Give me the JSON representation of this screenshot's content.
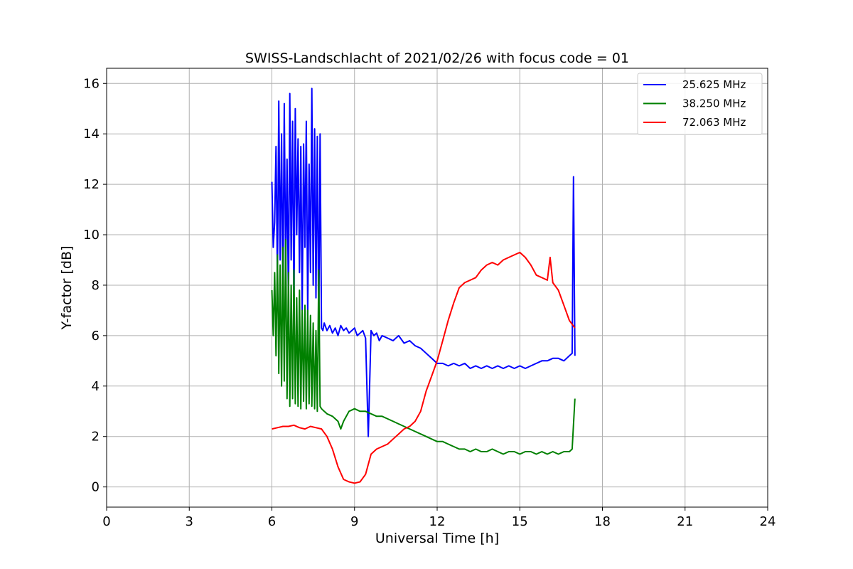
{
  "chart_data": {
    "type": "line",
    "title": "SWISS-Landschlacht of 2021/02/26 with focus code = 01",
    "xlabel": "Universal Time [h]",
    "ylabel": "Y-factor [dB]",
    "xlim": [
      0,
      24
    ],
    "ylim": [
      -0.8,
      16.6
    ],
    "xticks": [
      0,
      3,
      6,
      9,
      12,
      15,
      18,
      21,
      24
    ],
    "yticks": [
      0,
      2,
      4,
      6,
      8,
      10,
      12,
      14,
      16
    ],
    "grid": true,
    "legend_position": "top-right",
    "series": [
      {
        "name": "25.625 MHz",
        "color": "#0000ff",
        "points": [
          [
            6.0,
            12.1
          ],
          [
            6.05,
            9.5
          ],
          [
            6.1,
            10.5
          ],
          [
            6.15,
            13.5
          ],
          [
            6.2,
            8.2
          ],
          [
            6.25,
            15.3
          ],
          [
            6.3,
            9.0
          ],
          [
            6.35,
            14.0
          ],
          [
            6.4,
            7.5
          ],
          [
            6.45,
            15.2
          ],
          [
            6.5,
            8.5
          ],
          [
            6.55,
            13.0
          ],
          [
            6.6,
            7.2
          ],
          [
            6.65,
            15.6
          ],
          [
            6.7,
            9.0
          ],
          [
            6.75,
            14.5
          ],
          [
            6.8,
            7.0
          ],
          [
            6.85,
            15.0
          ],
          [
            6.9,
            10.0
          ],
          [
            6.95,
            13.8
          ],
          [
            7.0,
            8.5
          ],
          [
            7.05,
            13.5
          ],
          [
            7.1,
            7.0
          ],
          [
            7.15,
            13.6
          ],
          [
            7.2,
            9.5
          ],
          [
            7.25,
            14.5
          ],
          [
            7.3,
            6.8
          ],
          [
            7.35,
            12.8
          ],
          [
            7.4,
            8.5
          ],
          [
            7.45,
            15.8
          ],
          [
            7.5,
            8.0
          ],
          [
            7.55,
            14.2
          ],
          [
            7.6,
            7.5
          ],
          [
            7.65,
            13.9
          ],
          [
            7.7,
            6.0
          ],
          [
            7.75,
            14.0
          ],
          [
            7.8,
            6.3
          ],
          [
            7.85,
            6.2
          ],
          [
            7.9,
            6.5
          ],
          [
            8.0,
            6.2
          ],
          [
            8.1,
            6.4
          ],
          [
            8.2,
            6.1
          ],
          [
            8.3,
            6.3
          ],
          [
            8.4,
            6.0
          ],
          [
            8.5,
            6.4
          ],
          [
            8.6,
            6.2
          ],
          [
            8.7,
            6.3
          ],
          [
            8.8,
            6.1
          ],
          [
            8.9,
            6.2
          ],
          [
            9.0,
            6.3
          ],
          [
            9.1,
            6.0
          ],
          [
            9.2,
            6.1
          ],
          [
            9.3,
            6.2
          ],
          [
            9.4,
            5.9
          ],
          [
            9.5,
            2.0
          ],
          [
            9.6,
            6.2
          ],
          [
            9.7,
            6.0
          ],
          [
            9.8,
            6.1
          ],
          [
            9.9,
            5.8
          ],
          [
            10.0,
            6.0
          ],
          [
            10.2,
            5.9
          ],
          [
            10.4,
            5.8
          ],
          [
            10.6,
            6.0
          ],
          [
            10.8,
            5.7
          ],
          [
            11.0,
            5.8
          ],
          [
            11.2,
            5.6
          ],
          [
            11.4,
            5.5
          ],
          [
            11.6,
            5.3
          ],
          [
            11.8,
            5.1
          ],
          [
            12.0,
            4.9
          ],
          [
            12.2,
            4.9
          ],
          [
            12.4,
            4.8
          ],
          [
            12.6,
            4.9
          ],
          [
            12.8,
            4.8
          ],
          [
            13.0,
            4.9
          ],
          [
            13.2,
            4.7
          ],
          [
            13.4,
            4.8
          ],
          [
            13.6,
            4.7
          ],
          [
            13.8,
            4.8
          ],
          [
            14.0,
            4.7
          ],
          [
            14.2,
            4.8
          ],
          [
            14.4,
            4.7
          ],
          [
            14.6,
            4.8
          ],
          [
            14.8,
            4.7
          ],
          [
            15.0,
            4.8
          ],
          [
            15.2,
            4.7
          ],
          [
            15.4,
            4.8
          ],
          [
            15.6,
            4.9
          ],
          [
            15.8,
            5.0
          ],
          [
            16.0,
            5.0
          ],
          [
            16.2,
            5.1
          ],
          [
            16.4,
            5.1
          ],
          [
            16.6,
            5.0
          ],
          [
            16.8,
            5.2
          ],
          [
            16.9,
            5.3
          ],
          [
            16.95,
            12.3
          ],
          [
            17.0,
            5.2
          ]
        ]
      },
      {
        "name": "38.250 MHz",
        "color": "#008000",
        "points": [
          [
            6.0,
            7.8
          ],
          [
            6.05,
            6.0
          ],
          [
            6.1,
            8.5
          ],
          [
            6.15,
            5.2
          ],
          [
            6.2,
            9.2
          ],
          [
            6.25,
            4.5
          ],
          [
            6.3,
            8.8
          ],
          [
            6.35,
            4.0
          ],
          [
            6.4,
            9.5
          ],
          [
            6.45,
            4.2
          ],
          [
            6.5,
            9.8
          ],
          [
            6.55,
            3.5
          ],
          [
            6.6,
            8.5
          ],
          [
            6.65,
            3.2
          ],
          [
            6.7,
            8.0
          ],
          [
            6.75,
            3.5
          ],
          [
            6.8,
            8.6
          ],
          [
            6.85,
            3.3
          ],
          [
            6.9,
            7.5
          ],
          [
            6.95,
            3.2
          ],
          [
            7.0,
            7.8
          ],
          [
            7.05,
            3.1
          ],
          [
            7.1,
            7.0
          ],
          [
            7.15,
            3.4
          ],
          [
            7.2,
            7.2
          ],
          [
            7.25,
            3.1
          ],
          [
            7.3,
            7.0
          ],
          [
            7.35,
            3.3
          ],
          [
            7.4,
            6.8
          ],
          [
            7.45,
            3.2
          ],
          [
            7.5,
            6.5
          ],
          [
            7.55,
            3.1
          ],
          [
            7.6,
            6.2
          ],
          [
            7.65,
            3.0
          ],
          [
            7.7,
            8.6
          ],
          [
            7.75,
            3.2
          ],
          [
            7.8,
            3.1
          ],
          [
            7.9,
            3.0
          ],
          [
            8.0,
            2.9
          ],
          [
            8.2,
            2.8
          ],
          [
            8.4,
            2.6
          ],
          [
            8.5,
            2.3
          ],
          [
            8.6,
            2.6
          ],
          [
            8.8,
            3.0
          ],
          [
            9.0,
            3.1
          ],
          [
            9.2,
            3.0
          ],
          [
            9.4,
            3.0
          ],
          [
            9.6,
            2.9
          ],
          [
            9.8,
            2.8
          ],
          [
            10.0,
            2.8
          ],
          [
            10.2,
            2.7
          ],
          [
            10.4,
            2.6
          ],
          [
            10.6,
            2.5
          ],
          [
            10.8,
            2.4
          ],
          [
            11.0,
            2.3
          ],
          [
            11.2,
            2.2
          ],
          [
            11.4,
            2.1
          ],
          [
            11.6,
            2.0
          ],
          [
            11.8,
            1.9
          ],
          [
            12.0,
            1.8
          ],
          [
            12.2,
            1.8
          ],
          [
            12.4,
            1.7
          ],
          [
            12.6,
            1.6
          ],
          [
            12.8,
            1.5
          ],
          [
            13.0,
            1.5
          ],
          [
            13.2,
            1.4
          ],
          [
            13.4,
            1.5
          ],
          [
            13.6,
            1.4
          ],
          [
            13.8,
            1.4
          ],
          [
            14.0,
            1.5
          ],
          [
            14.2,
            1.4
          ],
          [
            14.4,
            1.3
          ],
          [
            14.6,
            1.4
          ],
          [
            14.8,
            1.4
          ],
          [
            15.0,
            1.3
          ],
          [
            15.2,
            1.4
          ],
          [
            15.4,
            1.4
          ],
          [
            15.6,
            1.3
          ],
          [
            15.8,
            1.4
          ],
          [
            16.0,
            1.3
          ],
          [
            16.2,
            1.4
          ],
          [
            16.4,
            1.3
          ],
          [
            16.6,
            1.4
          ],
          [
            16.8,
            1.4
          ],
          [
            16.9,
            1.5
          ],
          [
            17.0,
            3.5
          ]
        ]
      },
      {
        "name": "72.063 MHz",
        "color": "#ff0000",
        "points": [
          [
            6.0,
            2.3
          ],
          [
            6.2,
            2.35
          ],
          [
            6.4,
            2.4
          ],
          [
            6.6,
            2.4
          ],
          [
            6.8,
            2.45
          ],
          [
            7.0,
            2.35
          ],
          [
            7.2,
            2.3
          ],
          [
            7.4,
            2.4
          ],
          [
            7.6,
            2.35
          ],
          [
            7.8,
            2.3
          ],
          [
            8.0,
            2.0
          ],
          [
            8.2,
            1.5
          ],
          [
            8.4,
            0.8
          ],
          [
            8.6,
            0.3
          ],
          [
            8.8,
            0.2
          ],
          [
            9.0,
            0.15
          ],
          [
            9.2,
            0.2
          ],
          [
            9.4,
            0.5
          ],
          [
            9.6,
            1.3
          ],
          [
            9.8,
            1.5
          ],
          [
            10.0,
            1.6
          ],
          [
            10.2,
            1.7
          ],
          [
            10.4,
            1.9
          ],
          [
            10.6,
            2.1
          ],
          [
            10.8,
            2.3
          ],
          [
            11.0,
            2.4
          ],
          [
            11.2,
            2.6
          ],
          [
            11.4,
            3.0
          ],
          [
            11.6,
            3.8
          ],
          [
            11.8,
            4.4
          ],
          [
            12.0,
            5.0
          ],
          [
            12.2,
            5.8
          ],
          [
            12.4,
            6.6
          ],
          [
            12.6,
            7.3
          ],
          [
            12.8,
            7.9
          ],
          [
            13.0,
            8.1
          ],
          [
            13.2,
            8.2
          ],
          [
            13.4,
            8.3
          ],
          [
            13.6,
            8.6
          ],
          [
            13.8,
            8.8
          ],
          [
            14.0,
            8.9
          ],
          [
            14.2,
            8.8
          ],
          [
            14.4,
            9.0
          ],
          [
            14.6,
            9.1
          ],
          [
            14.8,
            9.2
          ],
          [
            15.0,
            9.3
          ],
          [
            15.2,
            9.1
          ],
          [
            15.4,
            8.8
          ],
          [
            15.6,
            8.4
          ],
          [
            15.8,
            8.3
          ],
          [
            16.0,
            8.2
          ],
          [
            16.1,
            9.1
          ],
          [
            16.2,
            8.1
          ],
          [
            16.4,
            7.8
          ],
          [
            16.6,
            7.2
          ],
          [
            16.8,
            6.6
          ],
          [
            17.0,
            6.3
          ]
        ]
      }
    ]
  }
}
